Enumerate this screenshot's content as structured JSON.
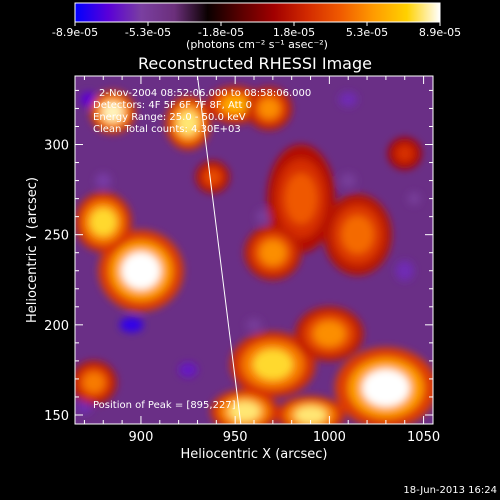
{
  "colors": {
    "background": "#000000",
    "text": "#ffffff",
    "peak_line": "#ffffff",
    "colormap_stops": [
      "#0000ff",
      "#5a00d8",
      "#7a3fa0",
      "#6b2f7b",
      "#0a0000",
      "#5a0000",
      "#a10000",
      "#d22a00",
      "#f05a00",
      "#ff9b00",
      "#ffd100",
      "#ffffff"
    ]
  },
  "colorbar": {
    "tick_labels": [
      "-8.9e-05",
      "-5.3e-05",
      "-1.8e-05",
      "1.8e-05",
      "5.3e-05",
      "8.9e-05"
    ],
    "units_label": "(photons cm⁻² s⁻¹ asec⁻²)"
  },
  "header": {
    "title": "Reconstructed RHESSI Image"
  },
  "annotations": {
    "time_range": "2-Nov-2004 08:52:06.000 to 08:58:06.000",
    "detectors": "Detectors: 4F 5F 6F 7F 8F, Att 0",
    "energy_range": "Energy Range: 25.0 - 50.0 keV",
    "clean_counts": "Clean    Total counts: 4.30E+03",
    "peak_position": "Position of Peak = [895,227]"
  },
  "footer": {
    "timestamp": "18-Jun-2013 16:24"
  },
  "chart_data": {
    "type": "heatmap",
    "title": "Reconstructed RHESSI Image",
    "xlabel": "Heliocentric X (arcsec)",
    "ylabel": "Heliocentric Y (arcsec)",
    "xlim": [
      865,
      1055
    ],
    "ylim": [
      145,
      338
    ],
    "xticks": [
      900,
      950,
      1000,
      1050
    ],
    "yticks": [
      150,
      200,
      250,
      300
    ],
    "colorbar_range": [
      -8.9e-05,
      8.9e-05
    ],
    "peak": {
      "x": 895,
      "y": 227
    },
    "limb_line": [
      [
        930,
        338
      ],
      [
        953,
        145
      ]
    ],
    "hot_spots": [
      {
        "x": 885,
        "y": 318,
        "w": 8,
        "h": 8,
        "v": 0.95
      },
      {
        "x": 900,
        "y": 230,
        "w": 15,
        "h": 15,
        "v": 1.0
      },
      {
        "x": 880,
        "y": 257,
        "w": 10,
        "h": 11,
        "v": 0.85
      },
      {
        "x": 925,
        "y": 312,
        "w": 8,
        "h": 10,
        "v": 0.9
      },
      {
        "x": 950,
        "y": 322,
        "w": 10,
        "h": 7,
        "v": 0.7
      },
      {
        "x": 938,
        "y": 282,
        "w": 6,
        "h": 6,
        "v": 0.4
      },
      {
        "x": 985,
        "y": 270,
        "w": 12,
        "h": 20,
        "v": 0.45
      },
      {
        "x": 970,
        "y": 240,
        "w": 10,
        "h": 10,
        "v": 0.6
      },
      {
        "x": 968,
        "y": 320,
        "w": 8,
        "h": 8,
        "v": 0.6
      },
      {
        "x": 1015,
        "y": 250,
        "w": 12,
        "h": 15,
        "v": 0.5
      },
      {
        "x": 1040,
        "y": 295,
        "w": 6,
        "h": 6,
        "v": 0.3
      },
      {
        "x": 970,
        "y": 178,
        "w": 15,
        "h": 12,
        "v": 0.85
      },
      {
        "x": 1030,
        "y": 165,
        "w": 18,
        "h": 15,
        "v": 1.0
      },
      {
        "x": 1000,
        "y": 195,
        "w": 12,
        "h": 10,
        "v": 0.6
      },
      {
        "x": 955,
        "y": 152,
        "w": 12,
        "h": 8,
        "v": 0.9
      },
      {
        "x": 875,
        "y": 168,
        "w": 8,
        "h": 8,
        "v": 0.55
      },
      {
        "x": 990,
        "y": 150,
        "w": 12,
        "h": 7,
        "v": 0.9
      }
    ],
    "cold_spots": [
      {
        "x": 872,
        "y": 325,
        "w": 6,
        "h": 6,
        "v": -0.8
      },
      {
        "x": 1010,
        "y": 325,
        "w": 7,
        "h": 6,
        "v": -0.7
      },
      {
        "x": 895,
        "y": 200,
        "w": 9,
        "h": 6,
        "v": -0.9
      },
      {
        "x": 1040,
        "y": 230,
        "w": 7,
        "h": 8,
        "v": -0.7
      },
      {
        "x": 1010,
        "y": 280,
        "w": 6,
        "h": 6,
        "v": -0.6
      },
      {
        "x": 870,
        "y": 155,
        "w": 6,
        "h": 6,
        "v": -0.7
      },
      {
        "x": 965,
        "y": 260,
        "w": 6,
        "h": 6,
        "v": -0.6
      },
      {
        "x": 925,
        "y": 175,
        "w": 7,
        "h": 6,
        "v": -0.75
      },
      {
        "x": 880,
        "y": 280,
        "w": 6,
        "h": 6,
        "v": -0.65
      },
      {
        "x": 960,
        "y": 200,
        "w": 6,
        "h": 5,
        "v": -0.6
      },
      {
        "x": 1045,
        "y": 270,
        "w": 5,
        "h": 5,
        "v": -0.6
      }
    ]
  }
}
